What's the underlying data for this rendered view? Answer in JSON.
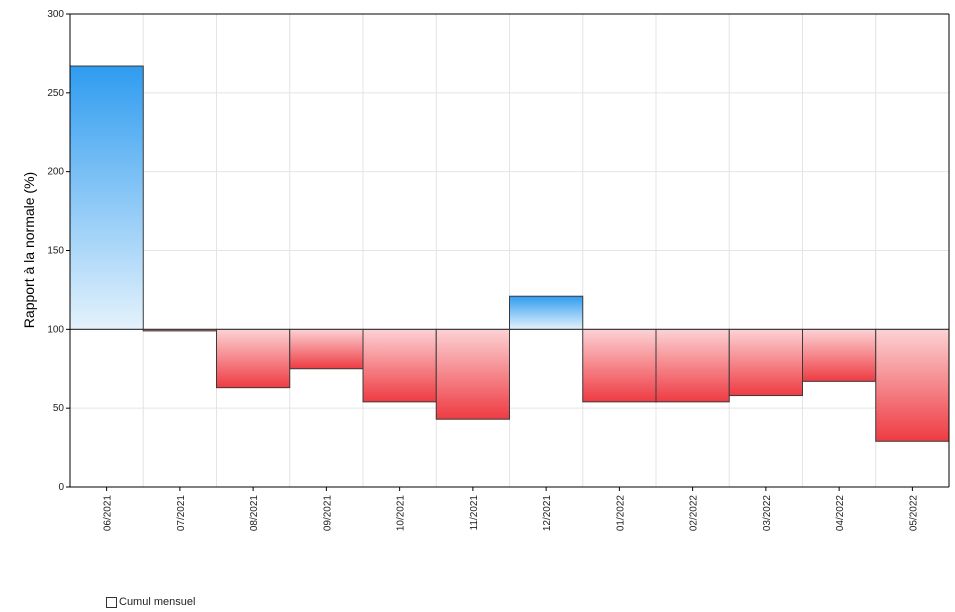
{
  "chart_data": {
    "type": "bar",
    "title": "",
    "xlabel": "",
    "ylabel": "Rapport à la normale (%)",
    "baseline": 100,
    "ylim": [
      0,
      300
    ],
    "yticks": [
      0,
      50,
      100,
      150,
      200,
      250,
      300
    ],
    "grid": true,
    "categories": [
      "06/2021",
      "07/2021",
      "08/2021",
      "09/2021",
      "10/2021",
      "11/2021",
      "12/2021",
      "01/2022",
      "02/2022",
      "03/2022",
      "04/2022",
      "05/2022"
    ],
    "series": [
      {
        "name": "Cumul mensuel",
        "values": [
          267,
          99,
          63,
          75,
          54,
          43,
          121,
          54,
          54,
          58,
          67,
          29
        ]
      }
    ],
    "colors": {
      "above_top": "#2f9cf0",
      "above_bottom": "#e4f2fc",
      "below_top": "#fcd2d4",
      "below_bottom": "#ee3b42",
      "edge": "#3a3a3a",
      "grid": "#e4e4e4",
      "axis": "#000000"
    },
    "legend": {
      "label": "Cumul mensuel",
      "position": "bottom-left"
    }
  }
}
